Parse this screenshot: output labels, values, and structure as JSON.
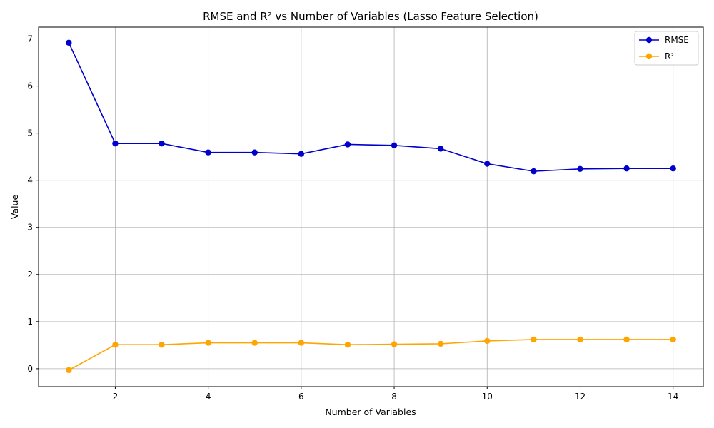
{
  "chart_data": {
    "type": "line",
    "title": "RMSE and R² vs Number of Variables (Lasso Feature Selection)",
    "xlabel": "Number of Variables",
    "ylabel": "Value",
    "x": [
      1,
      2,
      3,
      4,
      5,
      6,
      7,
      8,
      9,
      10,
      11,
      12,
      13,
      14
    ],
    "xlim": [
      0.35,
      14.65
    ],
    "ylim": [
      -0.38,
      7.25
    ],
    "xticks": [
      2,
      4,
      6,
      8,
      10,
      12,
      14
    ],
    "yticks": [
      0,
      1,
      2,
      3,
      4,
      5,
      6,
      7
    ],
    "grid": true,
    "legend_position": "top-right",
    "series": [
      {
        "name": "RMSE",
        "color": "#0000cc",
        "values": [
          6.92,
          4.78,
          4.78,
          4.59,
          4.59,
          4.56,
          4.76,
          4.74,
          4.67,
          4.35,
          4.19,
          4.24,
          4.25,
          4.25
        ]
      },
      {
        "name": "R²",
        "color": "#ffa500",
        "values": [
          -0.03,
          0.51,
          0.51,
          0.55,
          0.55,
          0.55,
          0.51,
          0.52,
          0.53,
          0.59,
          0.62,
          0.62,
          0.62,
          0.62
        ]
      }
    ]
  }
}
